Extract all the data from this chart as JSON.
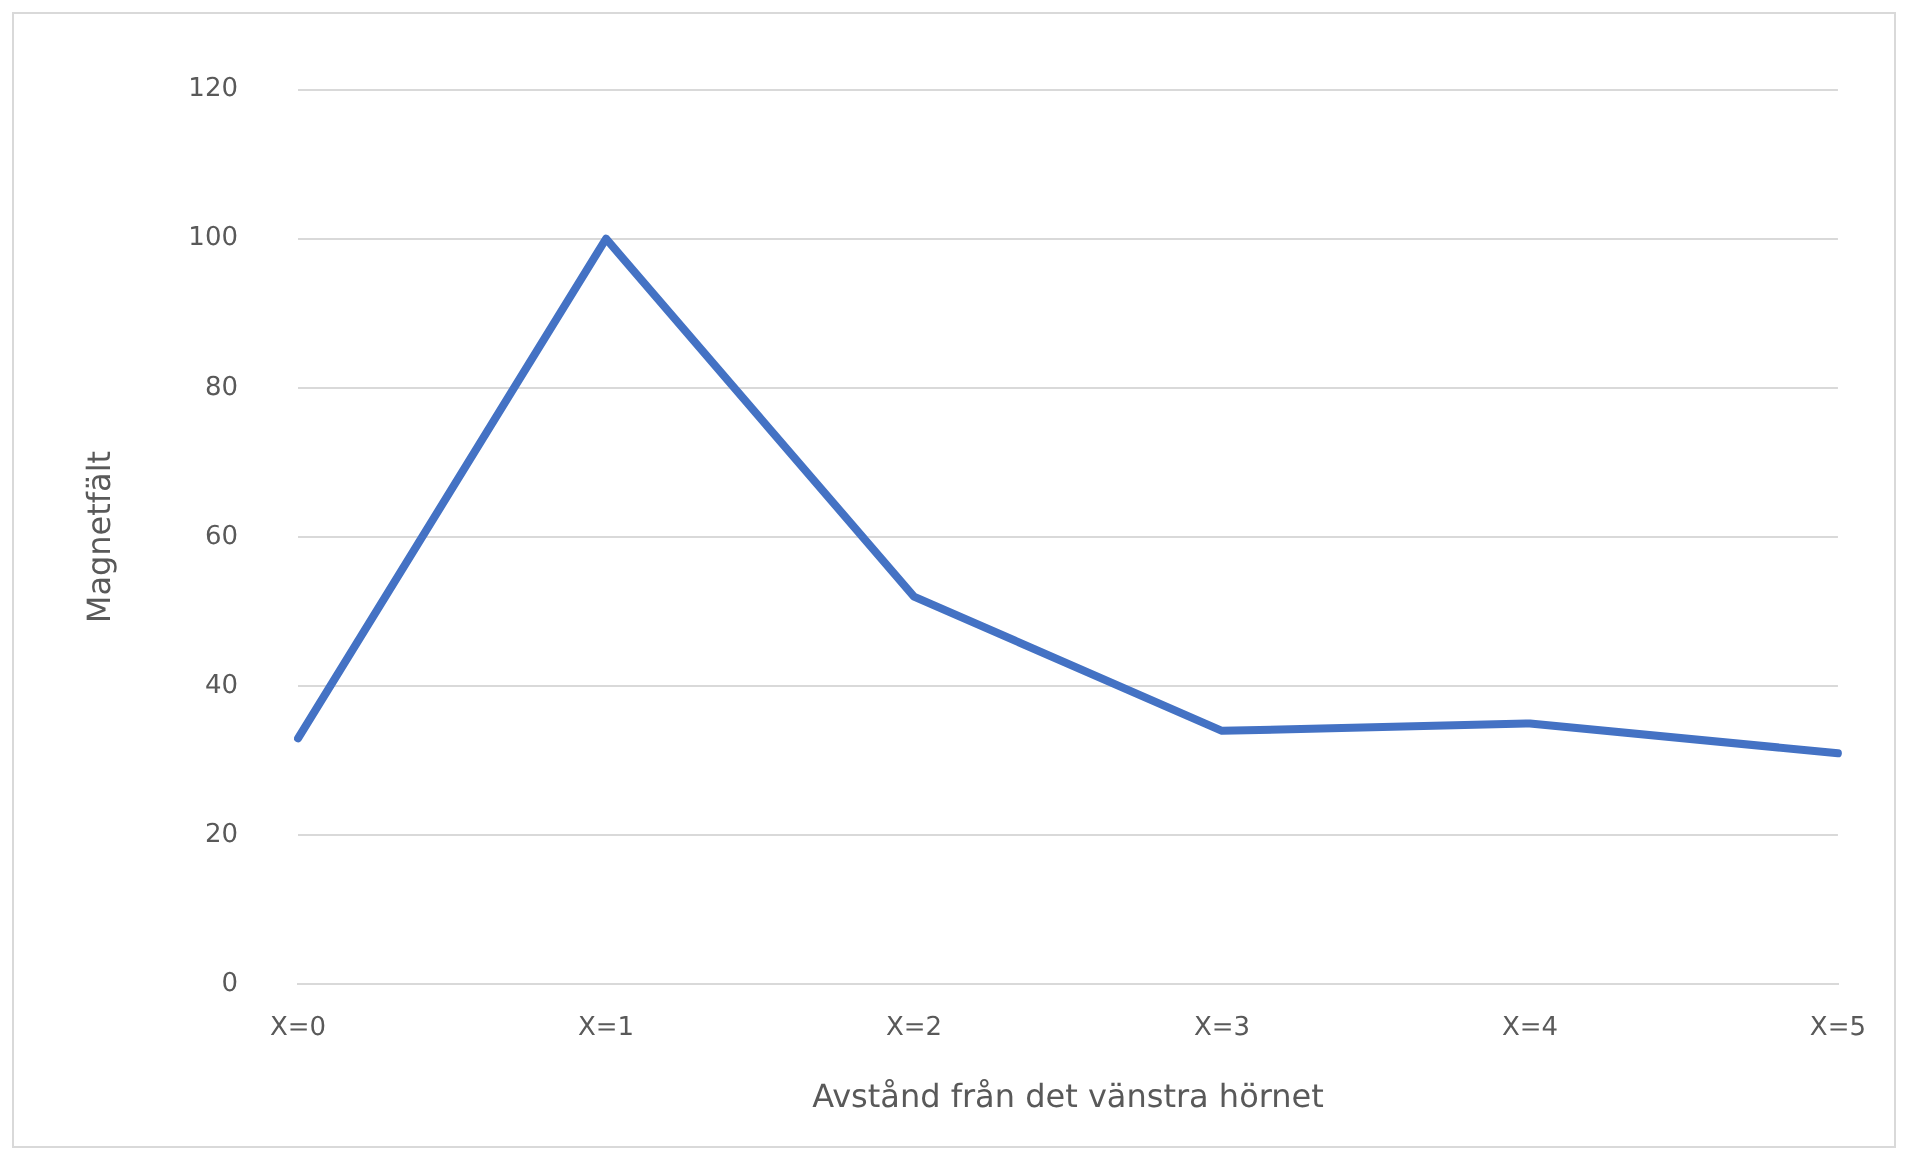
{
  "chart_data": {
    "type": "line",
    "xlabel": "Avstånd från det vänstra hörnet",
    "ylabel": "Magnetfält",
    "categories": [
      "X=0",
      "X=1",
      "X=2",
      "X=3",
      "X=4",
      "X=5"
    ],
    "series": [
      {
        "color": "#4472c4",
        "values": [
          33,
          100,
          52,
          34,
          35,
          31
        ]
      }
    ],
    "ylim": [
      0,
      120
    ],
    "yticks": [
      0,
      20,
      40,
      60,
      80,
      100,
      120
    ],
    "grid": "y",
    "legend": false,
    "marker": "none",
    "line_style": "solid"
  }
}
